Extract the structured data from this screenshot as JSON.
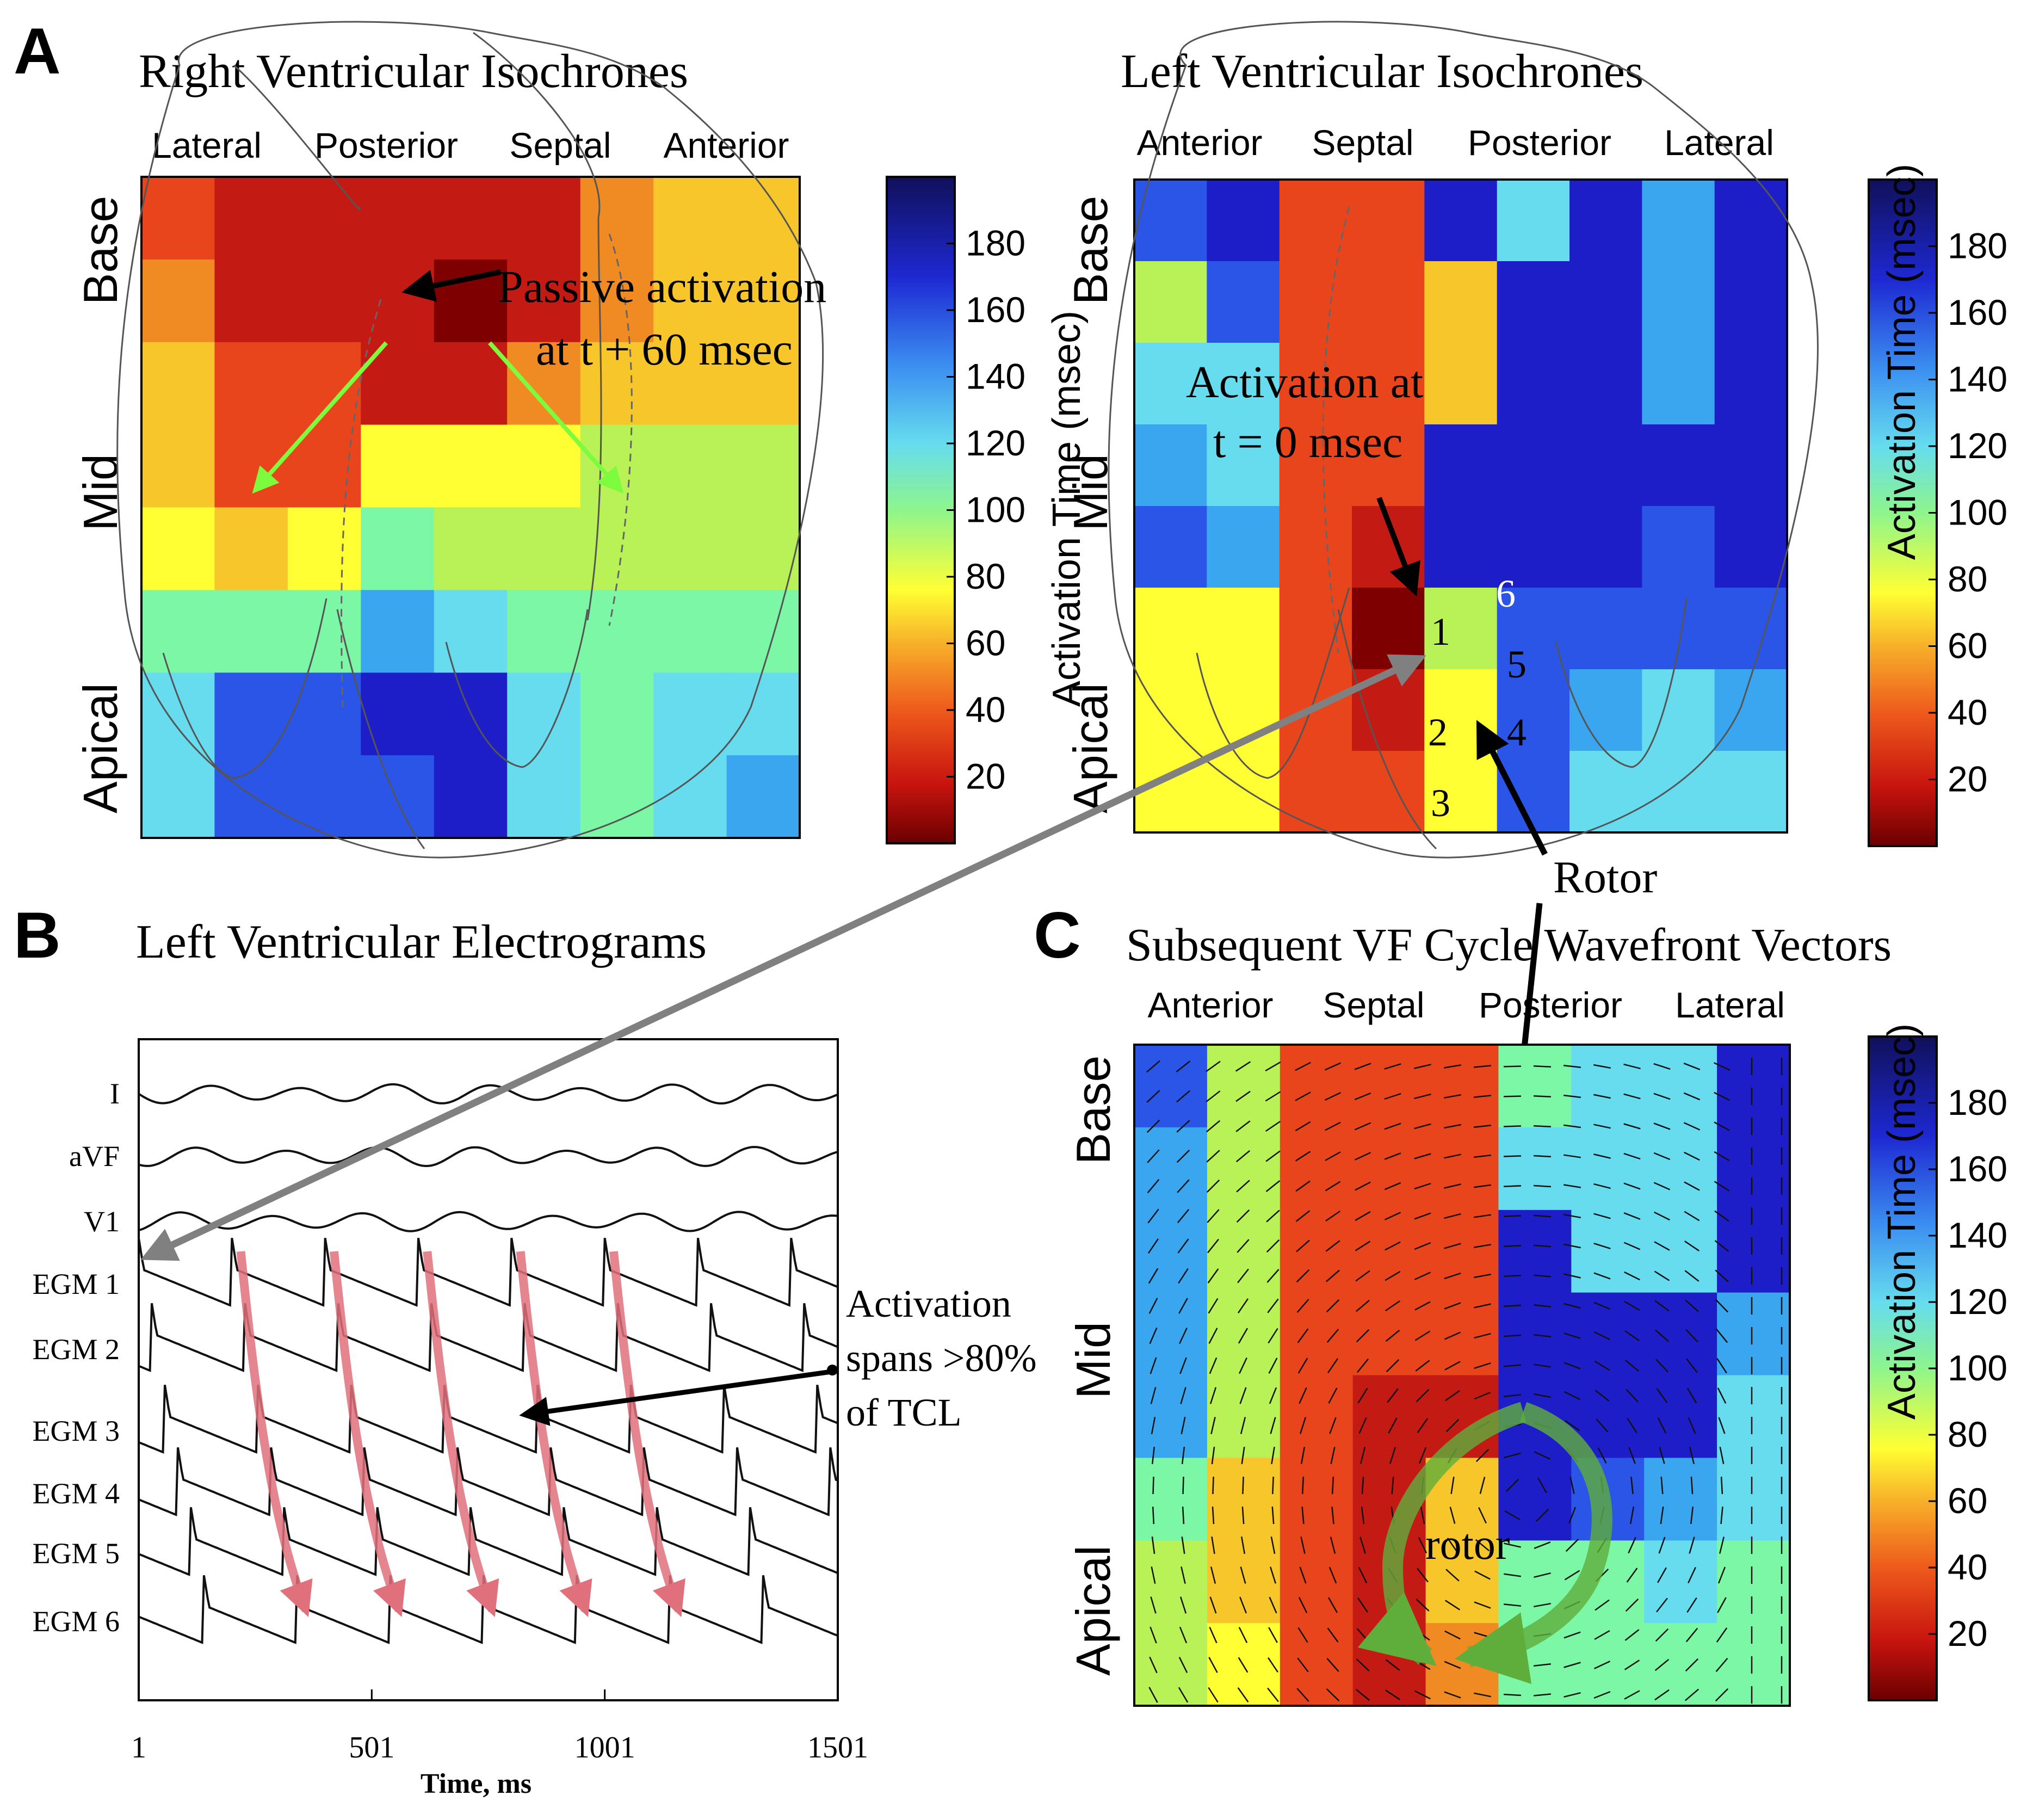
{
  "colors": {
    "jet": [
      "#7f0000",
      "#c41a14",
      "#e8451c",
      "#f08a23",
      "#f7c62a",
      "#ffff33",
      "#b8f256",
      "#7cf7a6",
      "#66dcee",
      "#3aa6f0",
      "#2a55e6",
      "#1e1ec8",
      "#141478"
    ],
    "egm_trace": "#111111",
    "activation_arrow": "#e0707b",
    "rotor_arrow": "#5fae3c",
    "passive_arrow": "#7cfc3c",
    "link_arrow": "#808080"
  },
  "panel_a": {
    "letter": "A",
    "rv": {
      "title": "Right Ventricular Isochrones",
      "walls": [
        "Lateral",
        "Posterior",
        "Septal",
        "Anterior"
      ],
      "levels": [
        "Base",
        "Mid",
        "Apical"
      ],
      "annotation": [
        "Passive activation",
        "at t + 60 msec"
      ]
    },
    "lv": {
      "title": "Left Ventricular Isochrones",
      "walls": [
        "Anterior",
        "Septal",
        "Posterior",
        "Lateral"
      ],
      "levels": [
        "Base",
        "Mid",
        "Apical"
      ],
      "annotation": [
        "Activation at",
        "t = 0 msec"
      ],
      "electrode_labels": [
        "1",
        "2",
        "3",
        "4",
        "5",
        "6"
      ]
    },
    "rotor_label": "Rotor"
  },
  "panel_b": {
    "letter": "B",
    "title": "Left Ventricular Electrograms",
    "annotation": [
      "Activation",
      "spans >80%",
      "of TCL"
    ]
  },
  "panel_c": {
    "letter": "C",
    "title": "Subsequent VF Cycle Wavefront Vectors",
    "walls": [
      "Anterior",
      "Septal",
      "Posterior",
      "Lateral"
    ],
    "levels": [
      "Base",
      "Mid",
      "Apical"
    ],
    "rotor_label": "rotor"
  },
  "colorbar": {
    "label": "Activation Time (msec)",
    "ticks": [
      "20",
      "40",
      "60",
      "80",
      "100",
      "120",
      "140",
      "160",
      "180"
    ]
  },
  "chart_data": [
    {
      "type": "heatmap",
      "title": "Right Ventricular Isochrones",
      "x_categories": [
        "Lateral",
        "Posterior",
        "Septal",
        "Anterior"
      ],
      "y_categories": [
        "Base",
        "Mid",
        "Apical"
      ],
      "zlabel": "Activation Time (msec)",
      "zlim": [
        0,
        200
      ],
      "grid_rows_top_to_bottom": [
        [
          40,
          15,
          10,
          10,
          10,
          20,
          50,
          65,
          65
        ],
        [
          55,
          15,
          15,
          15,
          5,
          15,
          50,
          60,
          65
        ],
        [
          65,
          25,
          30,
          20,
          20,
          50,
          60,
          65,
          70
        ],
        [
          70,
          35,
          35,
          80,
          80,
          80,
          95,
          95,
          95
        ],
        [
          80,
          65,
          90,
          110,
          100,
          100,
          100,
          100,
          105
        ],
        [
          110,
          110,
          115,
          150,
          135,
          115,
          110,
          110,
          120
        ],
        [
          130,
          160,
          160,
          180,
          180,
          135,
          120,
          125,
          130
        ],
        [
          130,
          160,
          160,
          170,
          175,
          130,
          120,
          135,
          155
        ]
      ]
    },
    {
      "type": "heatmap",
      "title": "Left Ventricular Isochrones",
      "x_categories": [
        "Anterior",
        "Septal",
        "Posterior",
        "Lateral"
      ],
      "y_categories": [
        "Base",
        "Mid",
        "Apical"
      ],
      "zlabel": "Activation Time (msec)",
      "zlim": [
        0,
        200
      ],
      "grid_rows_top_to_bottom": [
        [
          165,
          180,
          25,
          25,
          180,
          135,
          190,
          150,
          175
        ],
        [
          100,
          165,
          25,
          25,
          70,
          190,
          190,
          150,
          175
        ],
        [
          135,
          130,
          25,
          25,
          70,
          190,
          190,
          150,
          175
        ],
        [
          150,
          130,
          25,
          25,
          190,
          190,
          190,
          190,
          190
        ],
        [
          160,
          150,
          25,
          10,
          190,
          180,
          180,
          170,
          175
        ],
        [
          80,
          80,
          25,
          5,
          100,
          170,
          170,
          165,
          170
        ],
        [
          80,
          80,
          25,
          15,
          75,
          170,
          150,
          130,
          150
        ],
        [
          75,
          75,
          25,
          25,
          75,
          165,
          125,
          125,
          140
        ]
      ]
    },
    {
      "type": "line",
      "title": "Left Ventricular Electrograms",
      "xlabel": "Time, ms",
      "ylabel": "",
      "xlim": [
        1,
        1501
      ],
      "x_ticks": [
        "1",
        "501",
        "1001",
        "1501"
      ],
      "series": [
        {
          "name": "I"
        },
        {
          "name": "aVF"
        },
        {
          "name": "V1"
        },
        {
          "name": "EGM 1"
        },
        {
          "name": "EGM 2"
        },
        {
          "name": "EGM 3"
        },
        {
          "name": "EGM 4"
        },
        {
          "name": "EGM 5"
        },
        {
          "name": "EGM 6"
        }
      ],
      "cycle_length_ms": 200,
      "activation_onsets_ms": [
        200,
        400,
        600,
        800,
        1000
      ]
    },
    {
      "type": "heatmap",
      "title": "Subsequent VF Cycle Wavefront Vectors",
      "x_categories": [
        "Anterior",
        "Septal",
        "Posterior",
        "Lateral"
      ],
      "y_categories": [
        "Base",
        "Mid",
        "Apical"
      ],
      "zlabel": "Activation Time (msec)",
      "zlim": [
        0,
        200
      ],
      "grid_rows_top_to_bottom": [
        [
          170,
          100,
          40,
          25,
          25,
          120,
          130,
          125,
          175
        ],
        [
          150,
          100,
          25,
          25,
          40,
          130,
          130,
          135,
          175
        ],
        [
          150,
          100,
          25,
          25,
          25,
          190,
          140,
          135,
          175
        ],
        [
          150,
          100,
          25,
          25,
          25,
          180,
          190,
          190,
          150
        ],
        [
          145,
          100,
          25,
          10,
          10,
          190,
          190,
          185,
          140
        ],
        [
          120,
          60,
          25,
          10,
          60,
          190,
          170,
          145,
          125
        ],
        [
          100,
          70,
          25,
          15,
          65,
          110,
          115,
          130,
          120
        ],
        [
          95,
          80,
          25,
          20,
          50,
          110,
          115,
          120,
          115
        ]
      ]
    }
  ]
}
